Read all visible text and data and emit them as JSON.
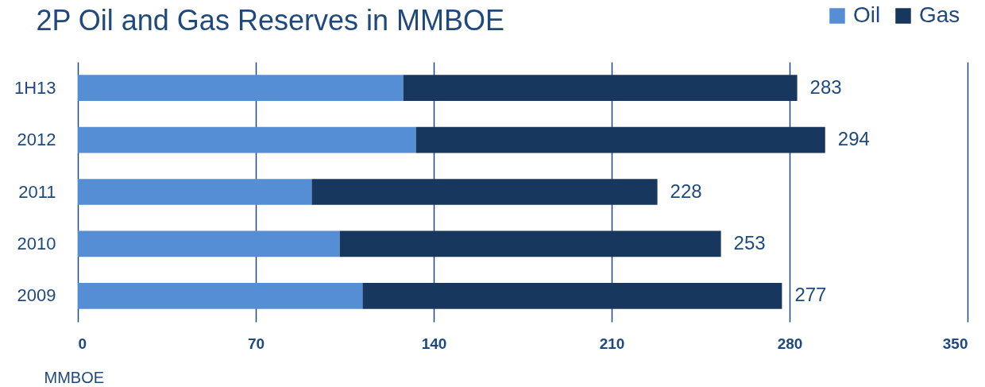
{
  "chart_data": {
    "type": "bar",
    "orientation": "horizontal",
    "stacked": true,
    "title": "2P Oil and Gas Reserves in MMBOE",
    "xlabel": "MMBOE",
    "categories": [
      "1H13",
      "2012",
      "2011",
      "2010",
      "2009"
    ],
    "series": [
      {
        "name": "Oil",
        "color": "#558ed5",
        "values": [
          128,
          133,
          92,
          103,
          112
        ]
      },
      {
        "name": "Gas",
        "color": "#17375e",
        "values": [
          155,
          161,
          136,
          150,
          165
        ]
      }
    ],
    "totals": [
      "283",
      "294",
      "228",
      "253",
      "277"
    ],
    "xlim": [
      0,
      350
    ],
    "xticks": [
      0,
      70,
      140,
      210,
      280,
      350
    ],
    "grid": "x",
    "legend": "top right"
  }
}
